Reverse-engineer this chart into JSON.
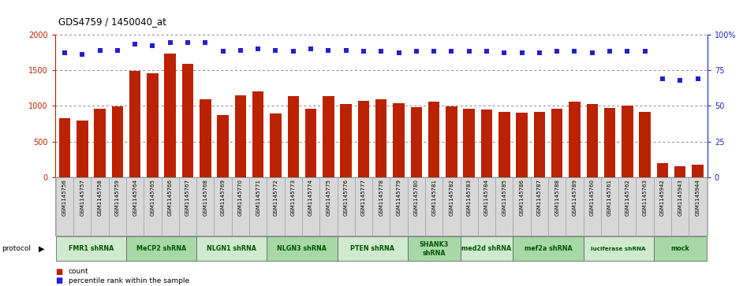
{
  "title": "GDS4759 / 1450040_at",
  "samples": [
    "GSM1145756",
    "GSM1145757",
    "GSM1145758",
    "GSM1145759",
    "GSM1145764",
    "GSM1145765",
    "GSM1145766",
    "GSM1145767",
    "GSM1145768",
    "GSM1145769",
    "GSM1145770",
    "GSM1145771",
    "GSM1145772",
    "GSM1145773",
    "GSM1145774",
    "GSM1145775",
    "GSM1145776",
    "GSM1145777",
    "GSM1145778",
    "GSM1145779",
    "GSM1145780",
    "GSM1145781",
    "GSM1145782",
    "GSM1145783",
    "GSM1145784",
    "GSM1145785",
    "GSM1145786",
    "GSM1145787",
    "GSM1145788",
    "GSM1145789",
    "GSM1145760",
    "GSM1145761",
    "GSM1145762",
    "GSM1145763",
    "GSM1145942",
    "GSM1145943",
    "GSM1145944"
  ],
  "counts": [
    830,
    790,
    960,
    990,
    1490,
    1460,
    1730,
    1590,
    1090,
    870,
    1150,
    1200,
    890,
    1140,
    960,
    1140,
    1030,
    1070,
    1090,
    1040,
    980,
    1060,
    990,
    960,
    950,
    920,
    900,
    910,
    960,
    1060,
    1020,
    970,
    1000,
    920,
    200,
    150,
    175
  ],
  "percentiles": [
    87,
    86,
    89,
    89,
    93,
    92,
    94,
    94,
    94,
    88,
    89,
    90,
    89,
    88,
    90,
    89,
    89,
    88,
    88,
    87,
    88,
    88,
    88,
    88,
    88,
    87,
    87,
    87,
    88,
    88,
    87,
    88,
    88,
    88,
    69,
    68,
    69
  ],
  "protocols": [
    {
      "label": "FMR1 shRNA",
      "start": 0,
      "end": 4,
      "color": "#d0ead0"
    },
    {
      "label": "MeCP2 shRNA",
      "start": 4,
      "end": 8,
      "color": "#a8d8a8"
    },
    {
      "label": "NLGN1 shRNA",
      "start": 8,
      "end": 12,
      "color": "#d0ead0"
    },
    {
      "label": "NLGN3 shRNA",
      "start": 12,
      "end": 16,
      "color": "#a8d8a8"
    },
    {
      "label": "PTEN shRNA",
      "start": 16,
      "end": 20,
      "color": "#d0ead0"
    },
    {
      "label": "SHANK3\nshRNA",
      "start": 20,
      "end": 23,
      "color": "#a8d8a8"
    },
    {
      "label": "med2d shRNA",
      "start": 23,
      "end": 26,
      "color": "#d0ead0"
    },
    {
      "label": "mef2a shRNA",
      "start": 26,
      "end": 30,
      "color": "#a8d8a8"
    },
    {
      "label": "luciferase shRNA",
      "start": 30,
      "end": 34,
      "color": "#d0ead0"
    },
    {
      "label": "mock",
      "start": 34,
      "end": 37,
      "color": "#a8d8a8"
    }
  ],
  "bar_color": "#bb2200",
  "dot_color": "#2222cc",
  "yticks_left": [
    0,
    500,
    1000,
    1500,
    2000
  ],
  "ytick_labels_left": [
    "0",
    "500",
    "1000",
    "1500",
    "2000"
  ],
  "yticks_right": [
    0,
    25,
    50,
    75,
    100
  ],
  "ytick_labels_right": [
    "0",
    "25",
    "50",
    "75",
    "100%"
  ],
  "label_bg_color": "#d8d8d8",
  "label_border_color": "#aaaaaa"
}
